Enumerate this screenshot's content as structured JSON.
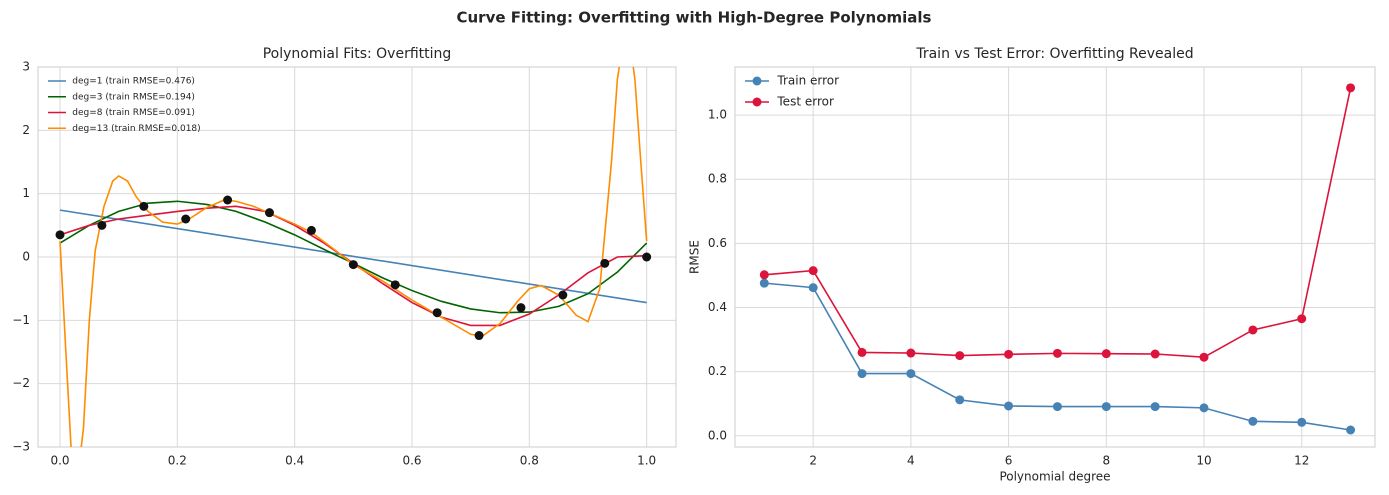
{
  "title": "Curve Fitting: Overfitting with High-Degree Polynomials",
  "chart_data": [
    {
      "type": "line",
      "title": "Polynomial Fits: Overfitting",
      "xlim": [
        -0.0375,
        1.05
      ],
      "ylim": [
        -3,
        3
      ],
      "xticks": [
        {
          "value": 0,
          "label": "0.0"
        },
        {
          "value": 0.2,
          "label": "0.2"
        },
        {
          "value": 0.4,
          "label": "0.4"
        },
        {
          "value": 0.6,
          "label": "0.6"
        },
        {
          "value": 0.8,
          "label": "0.8"
        },
        {
          "value": 1,
          "label": "1.0"
        }
      ],
      "yticks": [
        {
          "value": -3,
          "label": "−3"
        },
        {
          "value": -2,
          "label": "−2"
        },
        {
          "value": -1,
          "label": "−1"
        },
        0,
        1,
        2,
        3
      ],
      "grid": true,
      "legend": "upper left",
      "series": [
        {
          "name": "deg=1 (train RMSE=0.476)",
          "color": "#4682b4",
          "x": [
            0,
            1
          ],
          "values": [
            0.74,
            -0.72
          ]
        },
        {
          "name": "deg=3 (train RMSE=0.194)",
          "color": "#006400",
          "x": [
            0,
            0.05,
            0.1,
            0.15,
            0.2,
            0.25,
            0.3,
            0.35,
            0.4,
            0.45,
            0.5,
            0.55,
            0.6,
            0.65,
            0.7,
            0.75,
            0.8,
            0.85,
            0.9,
            0.95,
            1
          ],
          "values": [
            0.22,
            0.5,
            0.72,
            0.85,
            0.88,
            0.83,
            0.72,
            0.55,
            0.35,
            0.12,
            -0.1,
            -0.33,
            -0.53,
            -0.7,
            -0.82,
            -0.88,
            -0.87,
            -0.78,
            -0.58,
            -0.24,
            0.22
          ]
        },
        {
          "name": "deg=8 (train RMSE=0.091)",
          "color": "#dc143c",
          "x": [
            0,
            0.05,
            0.1,
            0.15,
            0.2,
            0.25,
            0.3,
            0.35,
            0.4,
            0.45,
            0.5,
            0.55,
            0.6,
            0.65,
            0.7,
            0.75,
            0.8,
            0.85,
            0.9,
            0.95,
            1
          ],
          "values": [
            0.35,
            0.5,
            0.6,
            0.66,
            0.72,
            0.77,
            0.8,
            0.72,
            0.5,
            0.22,
            -0.1,
            -0.42,
            -0.72,
            -0.95,
            -1.08,
            -1.08,
            -0.9,
            -0.6,
            -0.25,
            0.0,
            0.02
          ]
        },
        {
          "name": "deg=13 (train RMSE=0.018)",
          "color": "#ff8c00",
          "x": [
            0,
            0.01,
            0.02,
            0.03,
            0.04,
            0.05,
            0.06,
            0.075,
            0.09,
            0.1,
            0.115,
            0.13,
            0.15,
            0.175,
            0.2,
            0.22,
            0.25,
            0.28,
            0.3,
            0.33,
            0.36,
            0.4,
            0.43,
            0.47,
            0.5,
            0.55,
            0.6,
            0.65,
            0.7,
            0.72,
            0.75,
            0.78,
            0.8,
            0.82,
            0.85,
            0.88,
            0.9,
            0.92,
            0.94,
            0.95,
            0.96,
            0.97,
            0.98,
            0.99,
            1
          ],
          "values": [
            0.25,
            -1.5,
            -3.2,
            -3.5,
            -2.7,
            -1.0,
            0.1,
            0.8,
            1.2,
            1.28,
            1.2,
            0.95,
            0.72,
            0.55,
            0.52,
            0.6,
            0.78,
            0.9,
            0.88,
            0.8,
            0.68,
            0.52,
            0.38,
            0.1,
            -0.12,
            -0.38,
            -0.68,
            -0.95,
            -1.22,
            -1.25,
            -1.05,
            -0.7,
            -0.5,
            -0.45,
            -0.6,
            -0.92,
            -1.02,
            -0.5,
            1.5,
            2.8,
            3.4,
            3.5,
            2.8,
            1.5,
            0.25
          ]
        }
      ],
      "points": {
        "color": "#111111",
        "x": [
          0,
          0.0714,
          0.1429,
          0.2143,
          0.2857,
          0.3571,
          0.4286,
          0.5,
          0.5714,
          0.6429,
          0.7143,
          0.7857,
          0.8571,
          0.9286,
          1
        ],
        "values": [
          0.35,
          0.5,
          0.8,
          0.6,
          0.9,
          0.7,
          0.42,
          -0.12,
          -0.44,
          -0.88,
          -1.24,
          -0.8,
          -0.6,
          -0.1,
          0.0
        ]
      }
    },
    {
      "type": "line",
      "title": "Train vs Test Error: Overfitting Revealed",
      "xlabel": "Polynomial degree",
      "ylabel": "RMSE",
      "xlim": [
        0.4,
        13.5
      ],
      "ylim": [
        -0.035,
        1.15
      ],
      "xticks": [
        2,
        4,
        6,
        8,
        10,
        12
      ],
      "yticks": [
        {
          "value": 0,
          "label": "0.0"
        },
        {
          "value": 0.2,
          "label": "0.2"
        },
        {
          "value": 0.4,
          "label": "0.4"
        },
        {
          "value": 0.6,
          "label": "0.6"
        },
        {
          "value": 0.8,
          "label": "0.8"
        },
        {
          "value": 1,
          "label": "1.0"
        }
      ],
      "grid": true,
      "legend": "upper left",
      "markers": true,
      "series": [
        {
          "name": "Train error",
          "color": "#4682b4",
          "x": [
            1,
            2,
            3,
            4,
            5,
            6,
            7,
            8,
            9,
            10,
            11,
            12,
            13
          ],
          "values": [
            0.476,
            0.462,
            0.194,
            0.194,
            0.112,
            0.093,
            0.091,
            0.091,
            0.091,
            0.087,
            0.045,
            0.042,
            0.018
          ]
        },
        {
          "name": "Test error",
          "color": "#dc143c",
          "x": [
            1,
            2,
            3,
            4,
            5,
            6,
            7,
            8,
            9,
            10,
            11,
            12,
            13
          ],
          "values": [
            0.502,
            0.515,
            0.26,
            0.258,
            0.25,
            0.254,
            0.257,
            0.256,
            0.255,
            0.245,
            0.33,
            0.365,
            1.085
          ]
        }
      ]
    }
  ]
}
